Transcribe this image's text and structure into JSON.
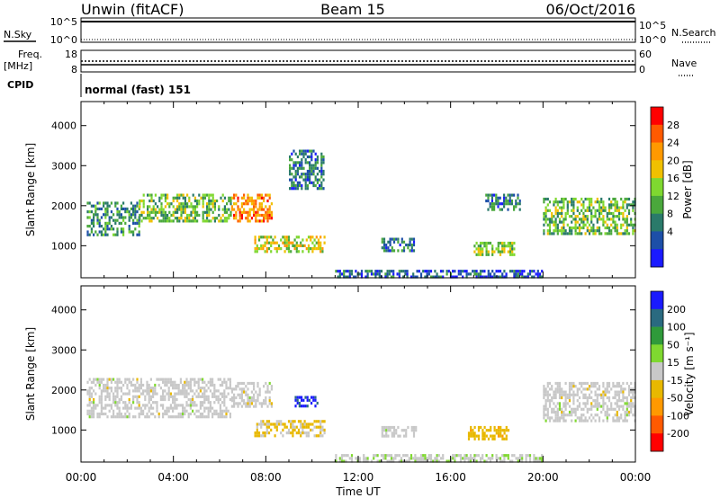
{
  "header": {
    "station": "Unwin (fitACF)",
    "beam": "Beam 15",
    "date": "06/Oct/2016"
  },
  "top_panels": {
    "nsky": {
      "left_label": "N.Sky",
      "ticks_left": [
        "10^5",
        "10^0"
      ],
      "ticks_right": [
        "10^5",
        "10^0"
      ],
      "right_label": "N.Search"
    },
    "freq": {
      "left_label": "Freq.",
      "left_unit": "[MHz]",
      "ticks_left": [
        "18",
        "8"
      ],
      "ticks_right": [
        "60",
        "0"
      ],
      "right_label": "Nave"
    },
    "cpid": {
      "left_label": "CPID",
      "mode_text": "normal (fast) 151"
    }
  },
  "chart_data": [
    {
      "type": "heatmap",
      "name": "power",
      "ylabel": "Slant Range [km]",
      "xlabel": "",
      "ylim": [
        200,
        4600
      ],
      "yticks": [
        "1000",
        "2000",
        "3000",
        "4000"
      ],
      "xticks": [
        "00:00",
        "04:00",
        "08:00",
        "12:00",
        "16:00",
        "20:00",
        "00:00"
      ],
      "colorbar": {
        "label": "Power [dB]",
        "ticks": [
          "28",
          "24",
          "20",
          "16",
          "12",
          "8",
          "4"
        ],
        "colors": [
          "#ff0000",
          "#ff5a00",
          "#ff9900",
          "#f0c000",
          "#7fd830",
          "#4aa83c",
          "#2a7a6a",
          "#1d4fa8",
          "#1a1aff"
        ]
      },
      "echo_regions": [
        {
          "t_start": "00:15",
          "t_end": "02:30",
          "range_km": [
            1300,
            2100
          ],
          "typical_db": 10
        },
        {
          "t_start": "02:30",
          "t_end": "06:30",
          "range_km": [
            1600,
            2300
          ],
          "typical_db": 14
        },
        {
          "t_start": "06:30",
          "t_end": "08:15",
          "range_km": [
            1600,
            2300
          ],
          "typical_db": 24
        },
        {
          "t_start": "07:30",
          "t_end": "10:30",
          "range_km": [
            850,
            1250
          ],
          "typical_db": 18
        },
        {
          "t_start": "09:00",
          "t_end": "10:30",
          "range_km": [
            2400,
            3400
          ],
          "typical_db": 8
        },
        {
          "t_start": "13:00",
          "t_end": "14:30",
          "range_km": [
            850,
            1200
          ],
          "typical_db": 8
        },
        {
          "t_start": "17:00",
          "t_end": "18:45",
          "range_km": [
            800,
            1100
          ],
          "typical_db": 16
        },
        {
          "t_start": "17:30",
          "t_end": "19:00",
          "range_km": [
            1900,
            2300
          ],
          "typical_db": 8
        },
        {
          "t_start": "20:00",
          "t_end": "24:00",
          "range_km": [
            1300,
            2200
          ],
          "typical_db": 14
        },
        {
          "t_start": "11:00",
          "t_end": "20:00",
          "range_km": [
            200,
            400
          ],
          "typical_db": 6
        }
      ]
    },
    {
      "type": "heatmap",
      "name": "velocity",
      "ylabel": "Slant Range [km]",
      "xlabel": "Time UT",
      "ylim": [
        200,
        4600
      ],
      "yticks": [
        "1000",
        "2000",
        "3000",
        "4000"
      ],
      "xticks": [
        "00:00",
        "04:00",
        "08:00",
        "12:00",
        "16:00",
        "20:00",
        "00:00"
      ],
      "colorbar": {
        "label": "Velocity [m s⁻¹]",
        "ticks": [
          "200",
          "100",
          "50",
          "15",
          "-15",
          "-50",
          "-100",
          "-200"
        ],
        "colors": [
          "#1a1aff",
          "#2a6a80",
          "#2f9a3a",
          "#7fd830",
          "#c8c8c8",
          "#e8b800",
          "#ff9900",
          "#ff5a00",
          "#ff0000"
        ]
      },
      "echo_regions": [
        {
          "t_start": "00:15",
          "t_end": "06:30",
          "range_km": [
            1300,
            2300
          ],
          "typical_ms": 0
        },
        {
          "t_start": "06:30",
          "t_end": "08:15",
          "range_km": [
            1600,
            2200
          ],
          "typical_ms": 0
        },
        {
          "t_start": "07:30",
          "t_end": "10:30",
          "range_km": [
            850,
            1250
          ],
          "typical_ms": -40
        },
        {
          "t_start": "09:15",
          "t_end": "10:15",
          "range_km": [
            1600,
            1850
          ],
          "typical_ms": 200
        },
        {
          "t_start": "13:00",
          "t_end": "14:30",
          "range_km": [
            850,
            1100
          ],
          "typical_ms": 0
        },
        {
          "t_start": "16:45",
          "t_end": "18:30",
          "range_km": [
            750,
            1100
          ],
          "typical_ms": -60
        },
        {
          "t_start": "20:00",
          "t_end": "24:00",
          "range_km": [
            1200,
            2200
          ],
          "typical_ms": 0
        },
        {
          "t_start": "11:00",
          "t_end": "20:00",
          "range_km": [
            200,
            400
          ],
          "typical_ms": 15
        }
      ]
    }
  ]
}
